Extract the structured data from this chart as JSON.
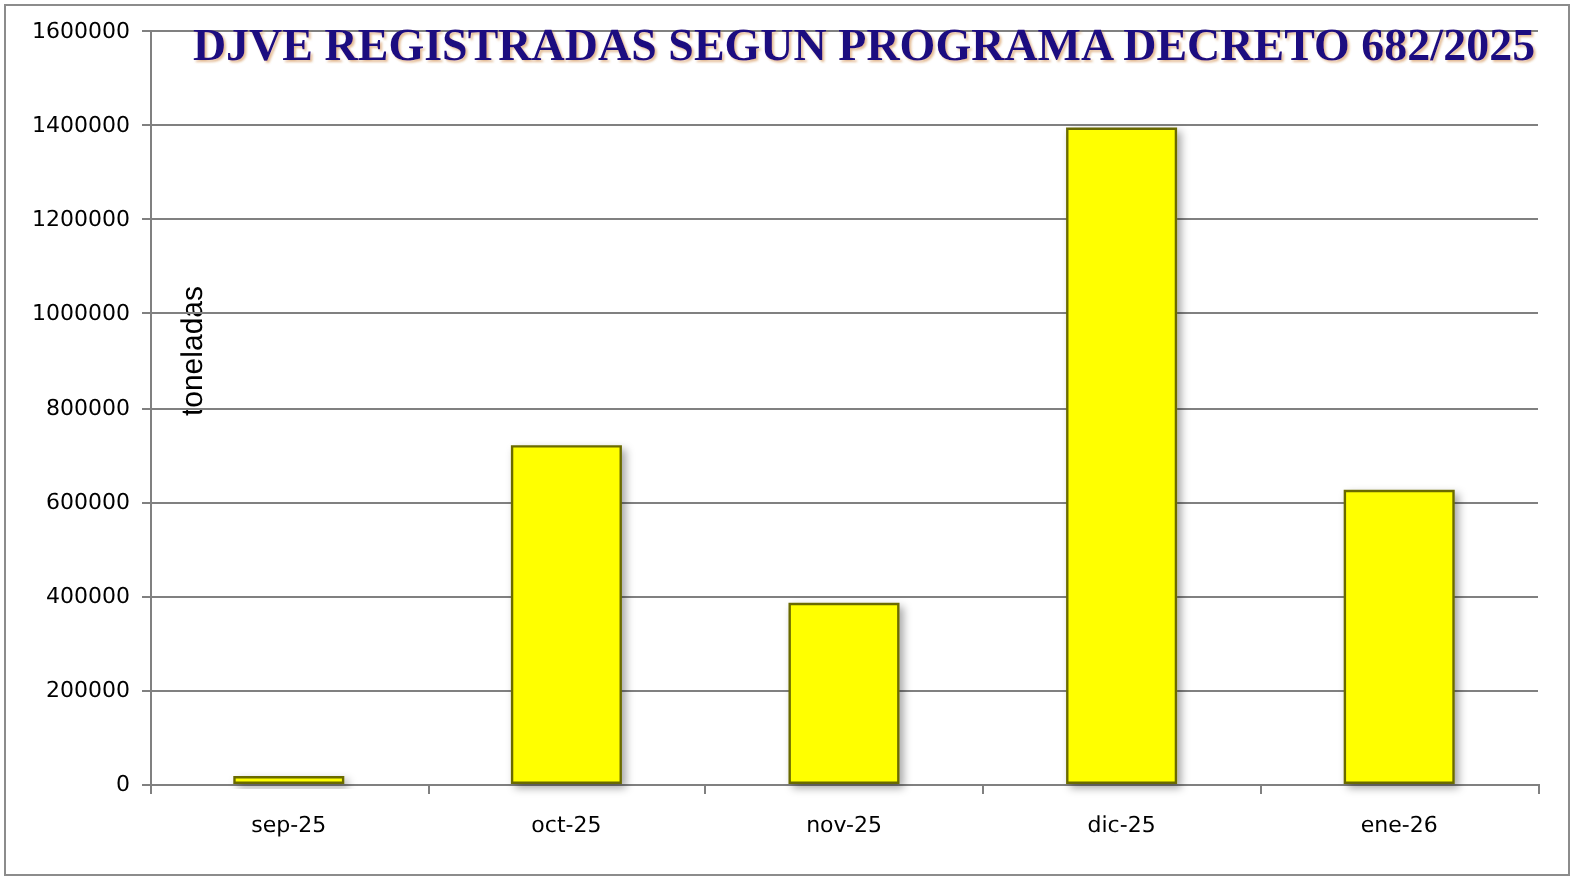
{
  "chart_data": {
    "type": "bar",
    "title": "DJVE REGISTRADAS SEGUN PROGRAMA DECRETO 682/2025",
    "ylabel": "toneladas",
    "categories": [
      "sep-25",
      "oct-25",
      "nov-25",
      "dic-25",
      "ene-26"
    ],
    "values": [
      17000,
      720000,
      385000,
      1395000,
      625000
    ],
    "color": "#ffff00",
    "ylim": [
      0,
      1600000
    ],
    "yticks": [
      0,
      200000,
      400000,
      600000,
      800000,
      1000000,
      1200000,
      1400000,
      1600000
    ],
    "grid": "y"
  }
}
